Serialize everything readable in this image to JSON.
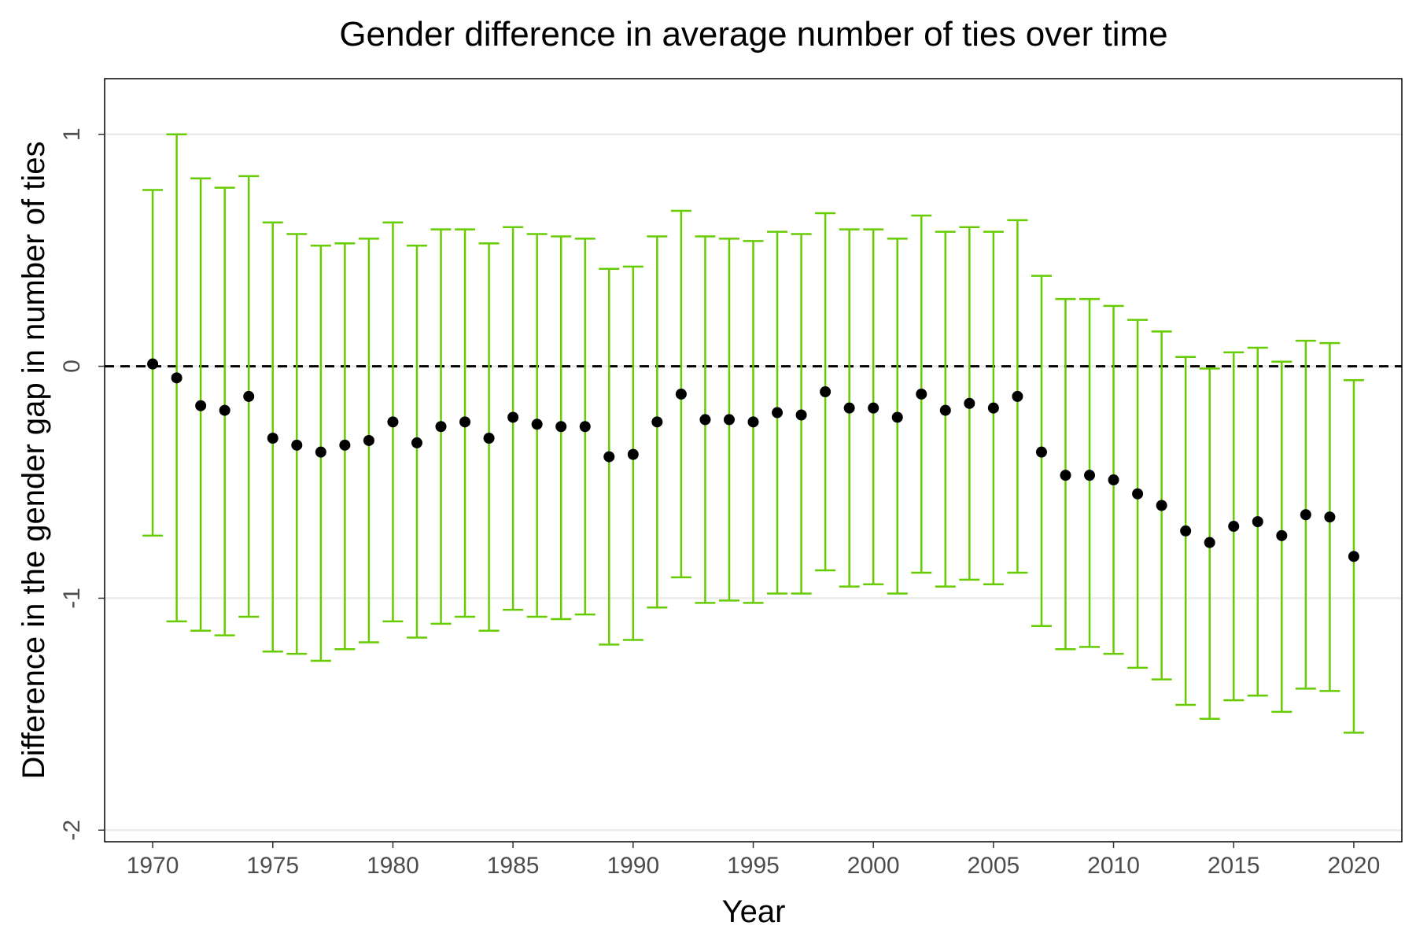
{
  "chart_data": {
    "type": "scatter",
    "title": "Gender difference in average number of ties over time",
    "xlabel": "Year",
    "ylabel": "Difference in the gender gap in number of ties",
    "xlim": [
      1968,
      2022
    ],
    "ylim": [
      -2.05,
      1.24
    ],
    "x_ticks": [
      1970,
      1975,
      1980,
      1985,
      1990,
      1995,
      2000,
      2005,
      2010,
      2015,
      2020
    ],
    "y_ticks": [
      -2,
      -1,
      0,
      1
    ],
    "x_tick_labels": [
      "1970",
      "1975",
      "1980",
      "1985",
      "1990",
      "1995",
      "2000",
      "2005",
      "2010",
      "2015",
      "2020"
    ],
    "y_tick_labels": [
      "-2",
      "-1",
      "0",
      "1"
    ],
    "grid": "horizontal major",
    "reference_line": {
      "y": 0,
      "style": "dashed",
      "color": "#000000"
    },
    "point_color": "#000000",
    "errorbar_color": "#66CC00",
    "x": [
      1970,
      1971,
      1972,
      1973,
      1974,
      1975,
      1976,
      1977,
      1978,
      1979,
      1980,
      1981,
      1982,
      1983,
      1984,
      1985,
      1986,
      1987,
      1988,
      1989,
      1990,
      1991,
      1992,
      1993,
      1994,
      1995,
      1996,
      1997,
      1998,
      1999,
      2000,
      2001,
      2002,
      2003,
      2004,
      2005,
      2006,
      2007,
      2008,
      2009,
      2010,
      2011,
      2012,
      2013,
      2014,
      2015,
      2016,
      2017,
      2018,
      2019,
      2020
    ],
    "y": [
      0.01,
      -0.05,
      -0.17,
      -0.19,
      -0.13,
      -0.31,
      -0.34,
      -0.37,
      -0.34,
      -0.32,
      -0.24,
      -0.33,
      -0.26,
      -0.24,
      -0.31,
      -0.22,
      -0.25,
      -0.26,
      -0.26,
      -0.39,
      -0.38,
      -0.24,
      -0.12,
      -0.23,
      -0.23,
      -0.24,
      -0.2,
      -0.21,
      -0.11,
      -0.18,
      -0.18,
      -0.22,
      -0.12,
      -0.19,
      -0.16,
      -0.18,
      -0.13,
      -0.37,
      -0.47,
      -0.47,
      -0.49,
      -0.55,
      -0.6,
      -0.71,
      -0.76,
      -0.69,
      -0.67,
      -0.73,
      -0.64,
      -0.65,
      -0.82
    ],
    "lower": [
      -0.73,
      -1.1,
      -1.14,
      -1.16,
      -1.08,
      -1.23,
      -1.24,
      -1.27,
      -1.22,
      -1.19,
      -1.1,
      -1.17,
      -1.11,
      -1.08,
      -1.14,
      -1.05,
      -1.08,
      -1.09,
      -1.07,
      -1.2,
      -1.18,
      -1.04,
      -0.91,
      -1.02,
      -1.01,
      -1.02,
      -0.98,
      -0.98,
      -0.88,
      -0.95,
      -0.94,
      -0.98,
      -0.89,
      -0.95,
      -0.92,
      -0.94,
      -0.89,
      -1.12,
      -1.22,
      -1.21,
      -1.24,
      -1.3,
      -1.35,
      -1.46,
      -1.52,
      -1.44,
      -1.42,
      -1.49,
      -1.39,
      -1.4,
      -1.58
    ],
    "upper": [
      0.76,
      1.0,
      0.81,
      0.77,
      0.82,
      0.62,
      0.57,
      0.52,
      0.53,
      0.55,
      0.62,
      0.52,
      0.59,
      0.59,
      0.53,
      0.6,
      0.57,
      0.56,
      0.55,
      0.42,
      0.43,
      0.56,
      0.67,
      0.56,
      0.55,
      0.54,
      0.58,
      0.57,
      0.66,
      0.59,
      0.59,
      0.55,
      0.65,
      0.58,
      0.6,
      0.58,
      0.63,
      0.39,
      0.29,
      0.29,
      0.26,
      0.2,
      0.15,
      0.04,
      -0.01,
      0.06,
      0.08,
      0.02,
      0.11,
      0.1,
      -0.06
    ]
  }
}
